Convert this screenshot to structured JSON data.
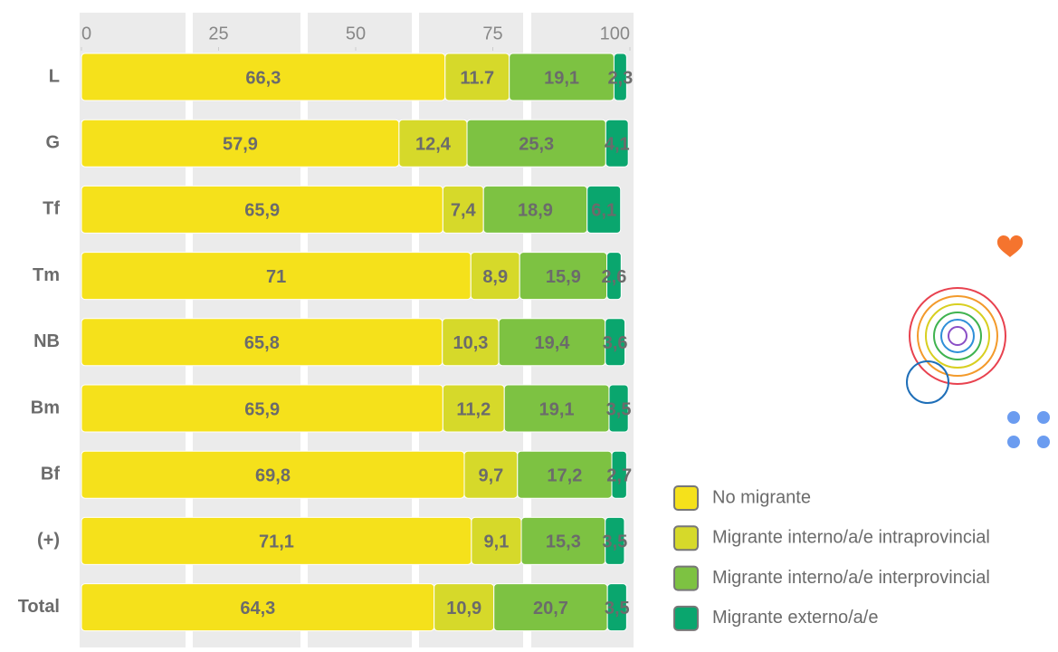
{
  "chart_data": {
    "type": "stacked-bar-horizontal",
    "categories": [
      "L",
      "G",
      "Tf",
      "Tm",
      "NB",
      "Bm",
      "Bf",
      "(+)",
      "Total"
    ],
    "xlim": [
      0,
      100
    ],
    "xticks": [
      0,
      25,
      50,
      75,
      100
    ],
    "series": [
      {
        "name": "No migrante",
        "color": "#f5e11b",
        "values": [
          66.3,
          57.9,
          65.9,
          71,
          65.8,
          65.9,
          69.8,
          71.1,
          64.3
        ],
        "value_labels": [
          "66,3",
          "57,9",
          "65,9",
          "71",
          "65,8",
          "65,9",
          "69,8",
          "71,1",
          "64,3"
        ]
      },
      {
        "name": "Migrante interno/a/e intraprovincial",
        "color": "#d6d92a",
        "values": [
          11.7,
          12.4,
          7.4,
          8.9,
          10.3,
          11.2,
          9.7,
          9.1,
          10.9
        ],
        "value_labels": [
          "11.7",
          "12,4",
          "7,4",
          "8,9",
          "10,3",
          "11,2",
          "9,7",
          "9,1",
          "10,9"
        ]
      },
      {
        "name": "Migrante interno/a/e interprovincial",
        "color": "#7dc242",
        "values": [
          19.1,
          25.3,
          18.9,
          15.9,
          19.4,
          19.1,
          17.2,
          15.3,
          20.7
        ],
        "value_labels": [
          "19,1",
          "25,3",
          "18,9",
          "15,9",
          "19,4",
          "19,1",
          "17,2",
          "15,3",
          "20,7"
        ]
      },
      {
        "name": "Migrante externo/a/e",
        "color": "#0aa66e",
        "values": [
          2.3,
          4.1,
          6.1,
          2.6,
          3.6,
          3.5,
          2.7,
          3.5,
          3.5
        ],
        "value_labels": [
          "2,3",
          "4,1",
          "6,1",
          "2,6",
          "3,6",
          "3,5",
          "2,7",
          "3,5",
          "3,5"
        ]
      }
    ]
  }
}
